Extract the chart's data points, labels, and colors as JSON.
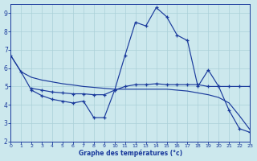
{
  "xlabel": "Graphe des températures (°c)",
  "xlim": [
    0,
    23
  ],
  "ylim": [
    2.0,
    9.5
  ],
  "yticks": [
    2,
    3,
    4,
    5,
    6,
    7,
    8,
    9
  ],
  "xticks": [
    0,
    1,
    2,
    3,
    4,
    5,
    6,
    7,
    8,
    9,
    10,
    11,
    12,
    13,
    14,
    15,
    16,
    17,
    18,
    19,
    20,
    21,
    22,
    23
  ],
  "background_color": "#cce8ed",
  "grid_color": "#aad0d8",
  "line_color": "#1a3a9c",
  "curve_peak_x": [
    0,
    1,
    2,
    3,
    4,
    5,
    6,
    7,
    8,
    9,
    10,
    11,
    12,
    13,
    14,
    15,
    16,
    17,
    18,
    19,
    20,
    21,
    22,
    23
  ],
  "curve_peak_y": [
    6.7,
    5.8,
    4.8,
    4.5,
    4.3,
    4.2,
    4.1,
    4.2,
    3.3,
    3.3,
    4.8,
    6.7,
    8.5,
    8.3,
    9.3,
    8.8,
    7.8,
    7.5,
    5.0,
    5.9,
    5.0,
    3.7,
    2.7,
    2.5
  ],
  "curve_flat_x": [
    2,
    3,
    4,
    5,
    6,
    7,
    8,
    9,
    10,
    11,
    12,
    13,
    14,
    15,
    16,
    17,
    18,
    19,
    20,
    21,
    22,
    23
  ],
  "curve_flat_y": [
    4.9,
    4.8,
    4.7,
    4.65,
    4.6,
    4.6,
    4.55,
    4.55,
    4.8,
    5.0,
    5.1,
    5.1,
    5.15,
    5.1,
    5.1,
    5.1,
    5.1,
    5.0,
    5.0,
    5.0,
    5.0,
    5.0
  ],
  "curve_decline_x": [
    0,
    1,
    2,
    3,
    4,
    5,
    6,
    7,
    8,
    9,
    10,
    11,
    12,
    13,
    14,
    15,
    16,
    17,
    18,
    19,
    20,
    21,
    22,
    23
  ],
  "curve_decline_y": [
    6.7,
    5.8,
    5.5,
    5.35,
    5.25,
    5.15,
    5.08,
    5.0,
    4.95,
    4.9,
    4.85,
    4.85,
    4.85,
    4.85,
    4.85,
    4.85,
    4.8,
    4.75,
    4.65,
    4.55,
    4.4,
    4.1,
    3.4,
    2.65
  ]
}
